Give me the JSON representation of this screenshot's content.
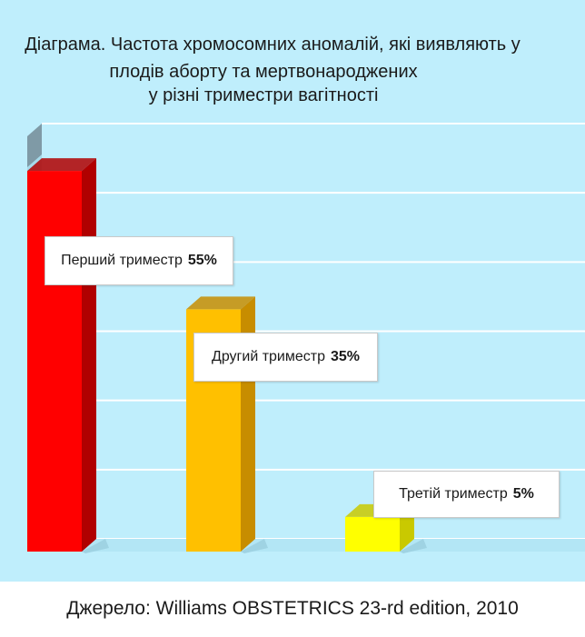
{
  "chart_data": {
    "type": "bar",
    "title_lines": [
      "Діаграма. Частота хромосомних аномалій, які виявляють у",
      "плодів аборту та мертвонароджених",
      "у різні триместри вагітності"
    ],
    "categories": [
      "Перший триместр",
      "Другий триместр",
      "Третій триместр"
    ],
    "values": [
      55,
      35,
      5
    ],
    "value_labels": [
      "55%",
      "35%",
      "5%"
    ],
    "ylim": [
      0,
      60
    ],
    "grid": true,
    "colors": [
      "#ff0000",
      "#ffc000",
      "#ffff00"
    ],
    "side_colors": [
      "#b00000",
      "#c78d00",
      "#c9c900"
    ],
    "background": "#bfeefc"
  },
  "source": "Джерело: Williams OBSTETRICS 23-rd edition, 2010"
}
